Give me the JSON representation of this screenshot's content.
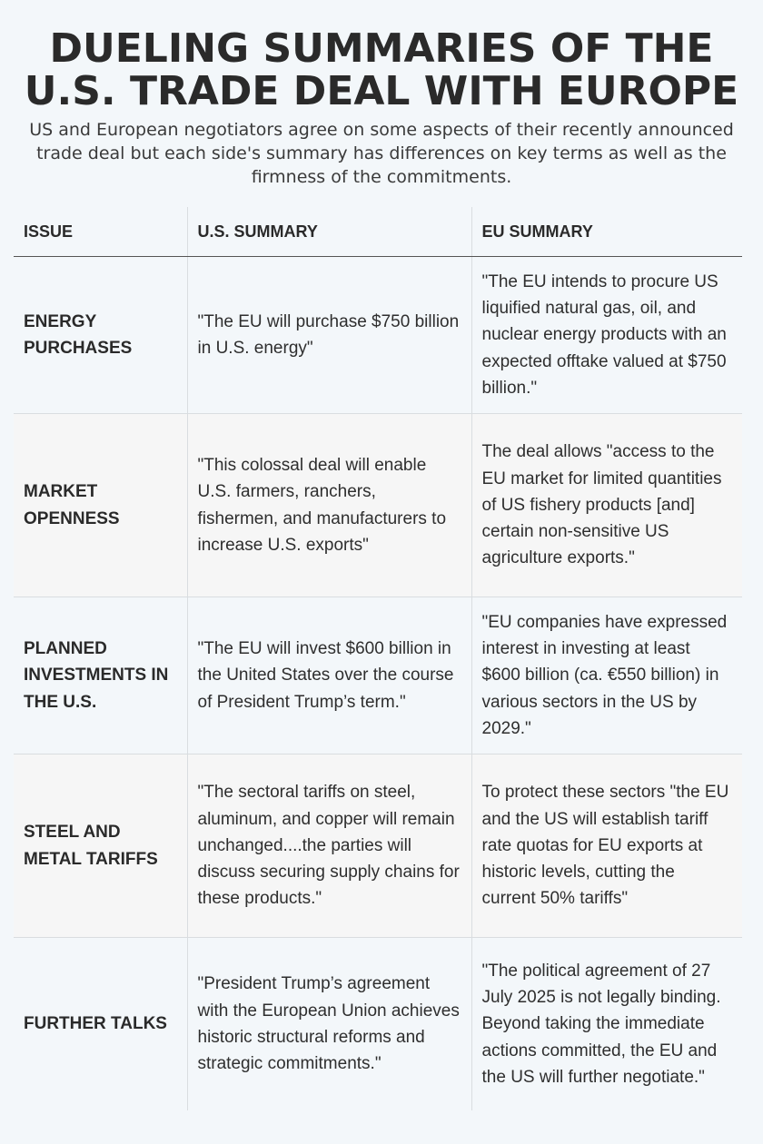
{
  "title": "DUELING SUMMARIES OF THE U.S. TRADE DEAL WITH EUROPE",
  "subtitle": "US and European negotiators agree on some aspects of their recently announced trade deal but each side's summary has differences on key terms as well as the firmness of the commitments.",
  "table": {
    "headers": [
      "ISSUE",
      "U.S. SUMMARY",
      "EU SUMMARY"
    ],
    "rows": [
      {
        "issue": "ENERGY PURCHASES",
        "us": "\"The EU will purchase $750 billion in U.S. energy\"",
        "eu": "\"The EU intends to procure US liquified natural gas, oil, and nuclear energy products with an expected offtake valued at $750 billion.\""
      },
      {
        "issue": "MARKET OPENNESS",
        "us": "\"This colossal deal will enable U.S. farmers, ranchers, fishermen, and manufacturers to increase U.S. exports\"",
        "eu": "The deal allows \"access to the EU market for limited quantities of US fishery products [and] certain non-sensitive US agriculture exports.\""
      },
      {
        "issue": "PLANNED INVESTMENTS IN THE U.S.",
        "us": "\"The EU will invest $600 billion in the United States over the course of President Trump’s term.\"",
        "eu": "\"EU companies have expressed interest in investing at least $600 billion (ca. €550 billion) in various sectors in the US by 2029.\""
      },
      {
        "issue": "STEEL AND METAL TARIFFS",
        "us": "\"The sectoral tariffs on steel, aluminum, and copper will remain unchanged....the parties will discuss securing supply chains for these products.\"",
        "eu": "To protect these sectors \"the EU and the US will establish tariff rate quotas for EU exports at historic levels, cutting the current 50% tariffs\""
      },
      {
        "issue": "FURTHER TALKS",
        "us": "\"President Trump’s agreement with the European Union achieves historic structural reforms and strategic commitments.\"",
        "eu": "\"The political agreement of 27 July 2025 is not legally binding. Beyond taking the immediate actions committed, the EU and the US will further negotiate.\""
      }
    ]
  }
}
